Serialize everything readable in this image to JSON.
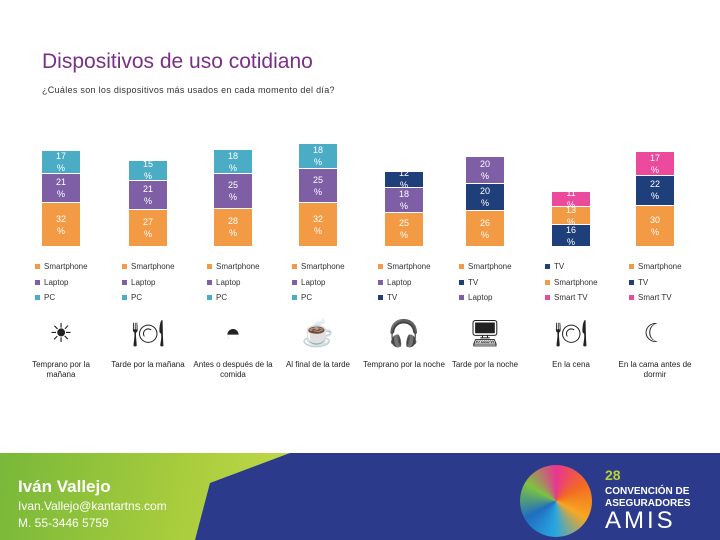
{
  "title": "Dispositivos de uso cotidiano",
  "subtitle": "¿Cuáles son los dispositivos más usados en cada momento del día?",
  "colors": {
    "Smartphone": "#f39a45",
    "Laptop": "#7e5fa5",
    "PC": "#4bacc6",
    "TV": "#1f3f7a",
    "Smart TV": "#ec4a9c"
  },
  "chart_data": {
    "type": "bar",
    "stacked": true,
    "unit": "%",
    "categories": [
      "Temprano por la mañana",
      "Tarde por la mañana",
      "Antes o después de la comida",
      "Al final de la tarde",
      "Temprano por la noche",
      "Tarde por la noche",
      "En la cena",
      "En la cama antes de dormir"
    ],
    "icons": [
      "sunrise-icon",
      "cup-plate-icon",
      "bowl-icon",
      "chat-coffee-icon",
      "headphones-icon",
      "monitor-icon",
      "plate-moon-icon",
      "moon-icon"
    ],
    "stacks": [
      [
        {
          "name": "Smartphone",
          "value": 32
        },
        {
          "name": "Laptop",
          "value": 21
        },
        {
          "name": "PC",
          "value": 17
        }
      ],
      [
        {
          "name": "Smartphone",
          "value": 27
        },
        {
          "name": "Laptop",
          "value": 21
        },
        {
          "name": "PC",
          "value": 15
        }
      ],
      [
        {
          "name": "Smartphone",
          "value": 28
        },
        {
          "name": "Laptop",
          "value": 25
        },
        {
          "name": "PC",
          "value": 18
        }
      ],
      [
        {
          "name": "Smartphone",
          "value": 32
        },
        {
          "name": "Laptop",
          "value": 25
        },
        {
          "name": "PC",
          "value": 18
        }
      ],
      [
        {
          "name": "Smartphone",
          "value": 25
        },
        {
          "name": "Laptop",
          "value": 18
        },
        {
          "name": "TV",
          "value": 12
        }
      ],
      [
        {
          "name": "Smartphone",
          "value": 26
        },
        {
          "name": "TV",
          "value": 20
        },
        {
          "name": "Laptop",
          "value": 20
        }
      ],
      [
        {
          "name": "TV",
          "value": 16
        },
        {
          "name": "Smartphone",
          "value": 13
        },
        {
          "name": "Smart TV",
          "value": 11
        }
      ],
      [
        {
          "name": "Smartphone",
          "value": 30
        },
        {
          "name": "TV",
          "value": 22
        },
        {
          "name": "Smart TV",
          "value": 17
        }
      ]
    ]
  },
  "footer": {
    "name": "Iván Vallejo",
    "email": "Ivan.Vallejo@kantartns.com",
    "phone": "M. 55-3446 5759",
    "logo_text": [
      "28",
      "CONVENCIÓN DE",
      "ASEGURADORES",
      "AMIS"
    ]
  }
}
